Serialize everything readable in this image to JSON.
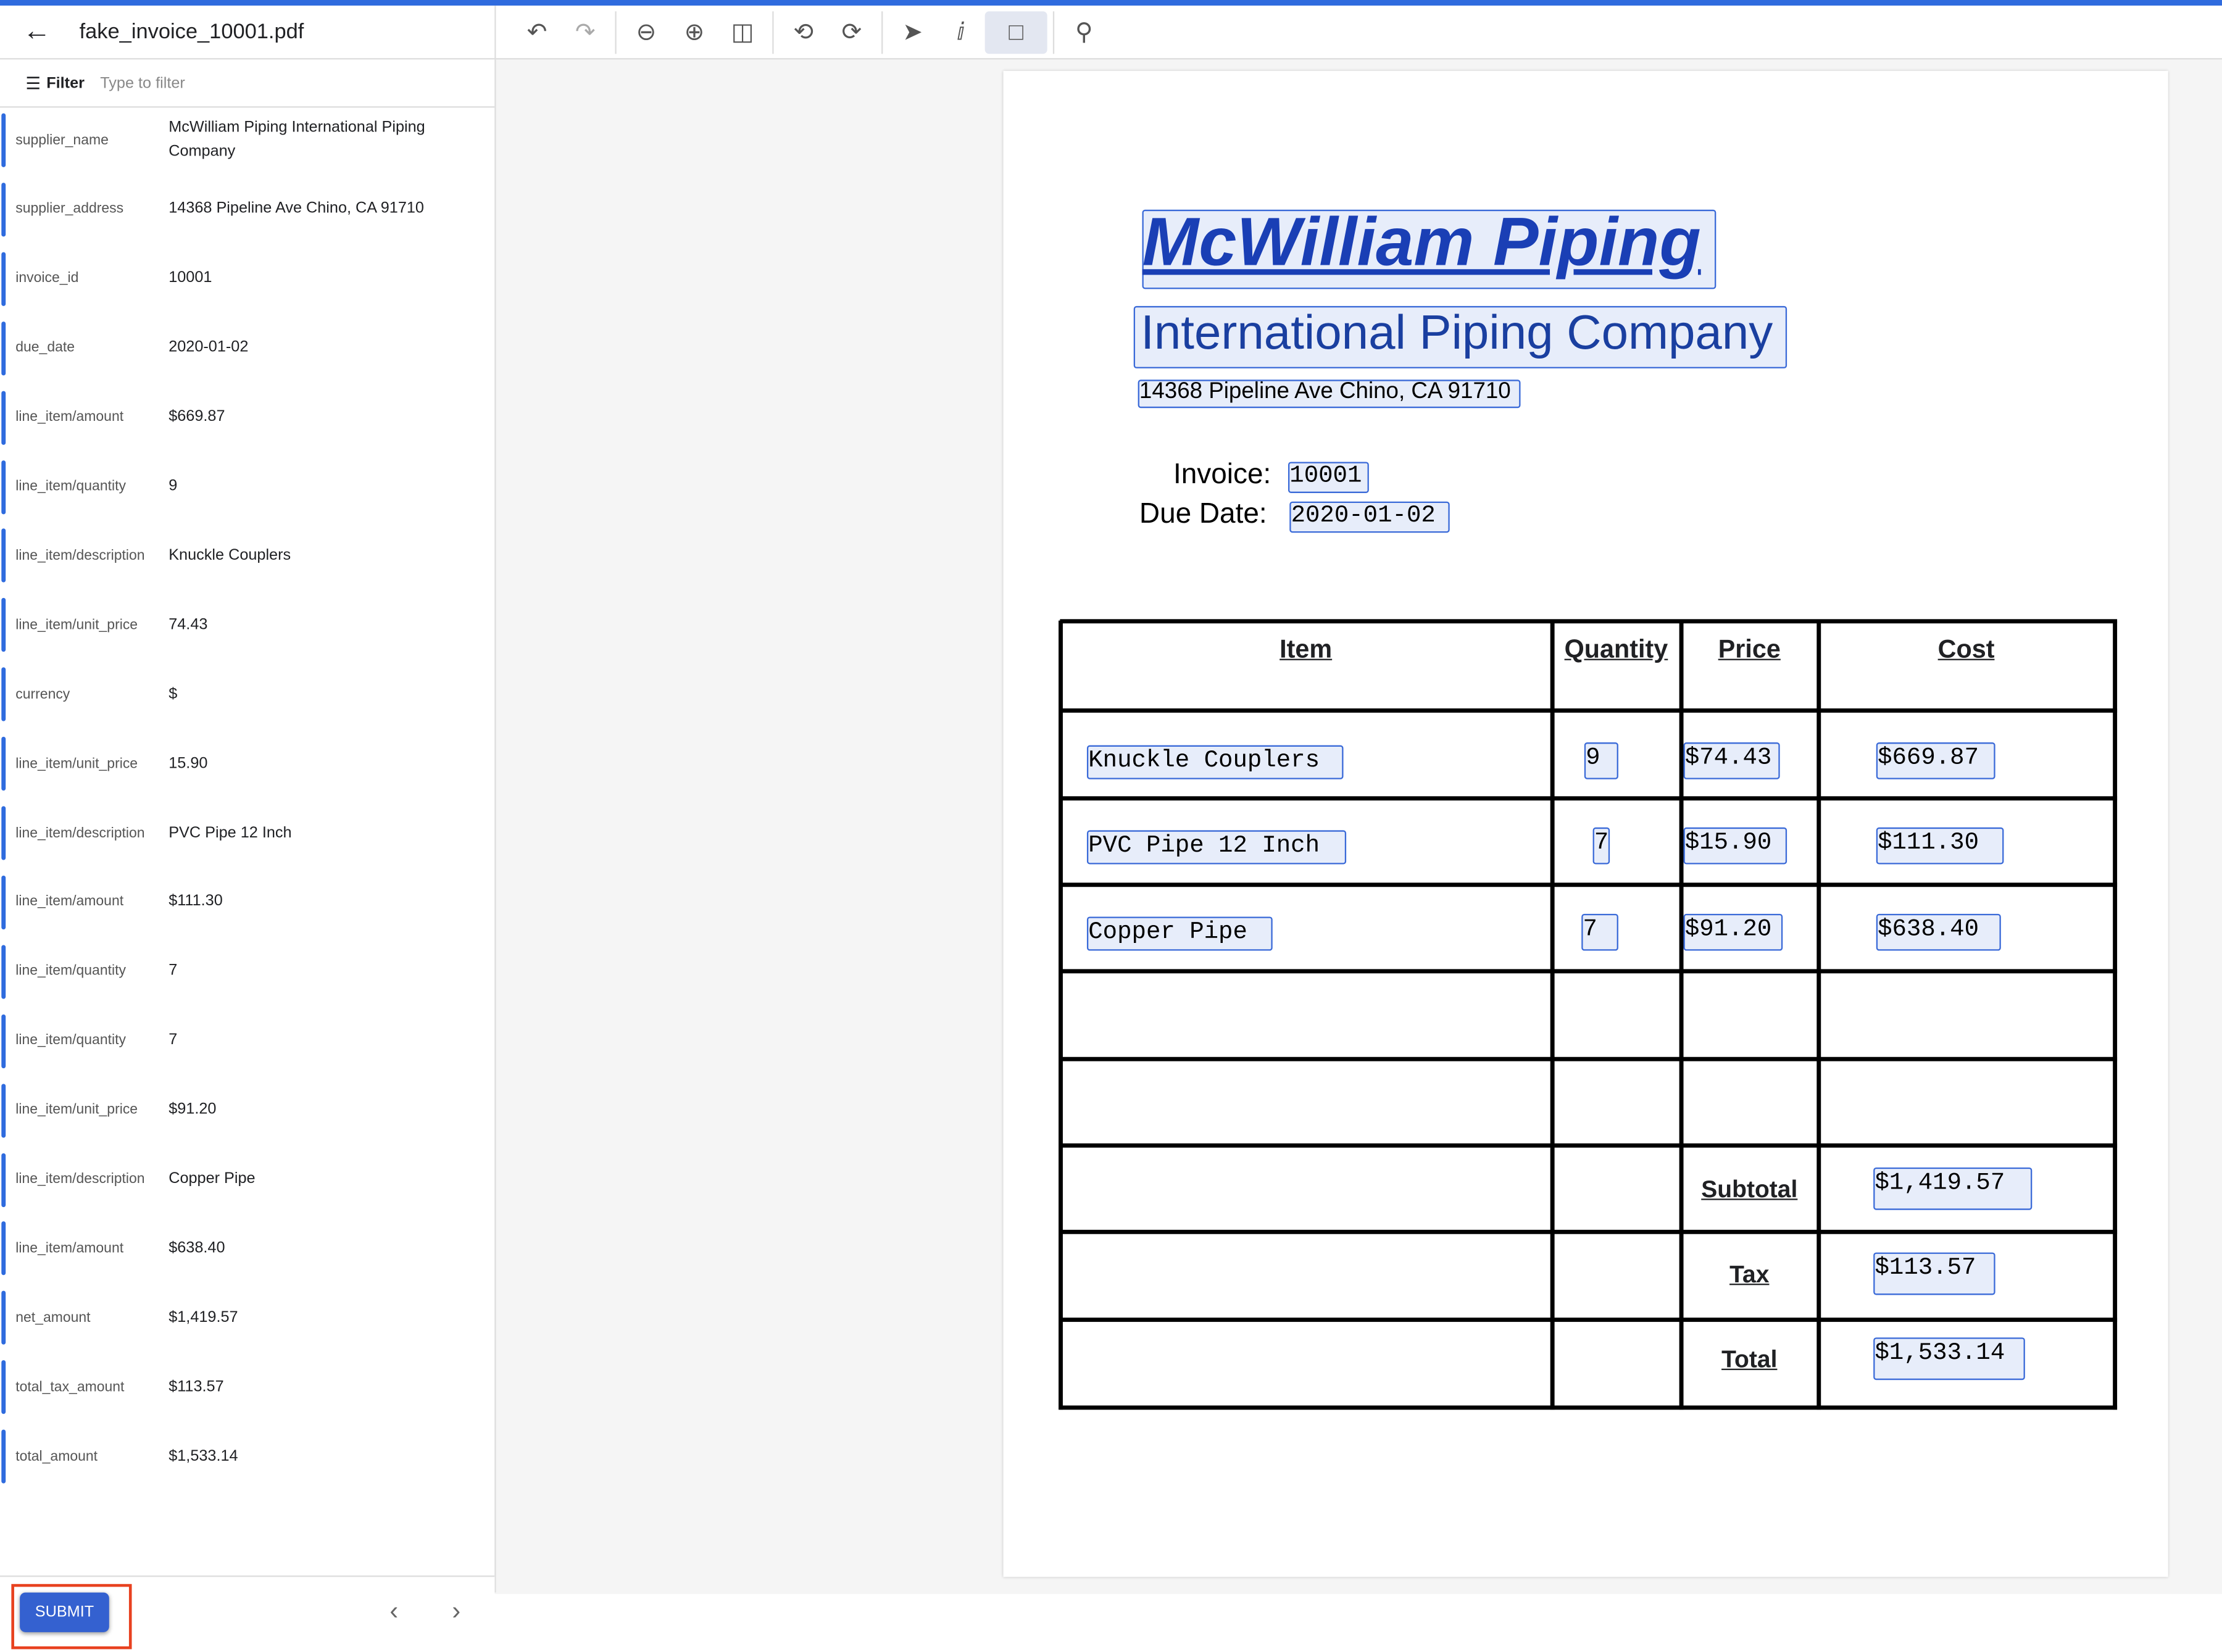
{
  "header": {
    "title": "fake_invoice_10001.pdf"
  },
  "toolbar": {
    "icons": [
      "undo-icon",
      "redo-icon",
      "zoom-out-icon",
      "zoom-in-icon",
      "fit-page-icon",
      "rotate-left-icon",
      "rotate-right-icon",
      "pointer-icon",
      "text-select-icon",
      "bounding-box-icon",
      "search-icon"
    ],
    "active": "bounding-box-icon"
  },
  "filter": {
    "label": "Filter",
    "placeholder": "Type to filter"
  },
  "fields": [
    {
      "key": "supplier_name",
      "value": "McWilliam Piping International Piping Company"
    },
    {
      "key": "supplier_address",
      "value": "14368 Pipeline Ave Chino, CA 91710"
    },
    {
      "key": "invoice_id",
      "value": "10001"
    },
    {
      "key": "due_date",
      "value": "2020-01-02"
    },
    {
      "key": "line_item/amount",
      "value": "$669.87"
    },
    {
      "key": "line_item/quantity",
      "value": "9"
    },
    {
      "key": "line_item/description",
      "value": "Knuckle Couplers"
    },
    {
      "key": "line_item/unit_price",
      "value": "74.43"
    },
    {
      "key": "currency",
      "value": "$"
    },
    {
      "key": "line_item/unit_price",
      "value": "15.90"
    },
    {
      "key": "line_item/description",
      "value": "PVC Pipe 12 Inch"
    },
    {
      "key": "line_item/amount",
      "value": "$111.30"
    },
    {
      "key": "line_item/quantity",
      "value": "7"
    },
    {
      "key": "line_item/quantity",
      "value": "7"
    },
    {
      "key": "line_item/unit_price",
      "value": "$91.20"
    },
    {
      "key": "line_item/description",
      "value": "Copper Pipe"
    },
    {
      "key": "line_item/amount",
      "value": "$638.40"
    },
    {
      "key": "net_amount",
      "value": "$1,419.57"
    },
    {
      "key": "total_tax_amount",
      "value": "$113.57"
    },
    {
      "key": "total_amount",
      "value": "$1,533.14"
    }
  ],
  "footer": {
    "submit": "SUBMIT"
  },
  "document": {
    "company_line1": "McWilliam Piping",
    "company_line2": "International Piping Company",
    "address": "14368 Pipeline Ave Chino, CA 91710",
    "invoice_label": "Invoice:",
    "invoice_id": "10001",
    "due_label": "Due Date:",
    "due_date": "2020-01-02",
    "headers": [
      "Item",
      "Quantity",
      "Price",
      "Cost"
    ],
    "items": [
      {
        "item": "Knuckle Couplers",
        "qty": "9",
        "price": "$74.43",
        "cost": "$669.87"
      },
      {
        "item": "PVC Pipe 12 Inch",
        "qty": "7",
        "price": "$15.90",
        "cost": "$111.30"
      },
      {
        "item": "Copper Pipe",
        "qty": "7",
        "price": "$91.20",
        "cost": "$638.40"
      }
    ],
    "subtotal_label": "Subtotal",
    "subtotal": "$1,419.57",
    "tax_label": "Tax",
    "tax": "$113.57",
    "total_label": "Total",
    "total": "$1,533.14"
  },
  "colors": {
    "accent": "#2f6bde",
    "highlight": "#3a6ad8",
    "submit": "#3461d0"
  }
}
